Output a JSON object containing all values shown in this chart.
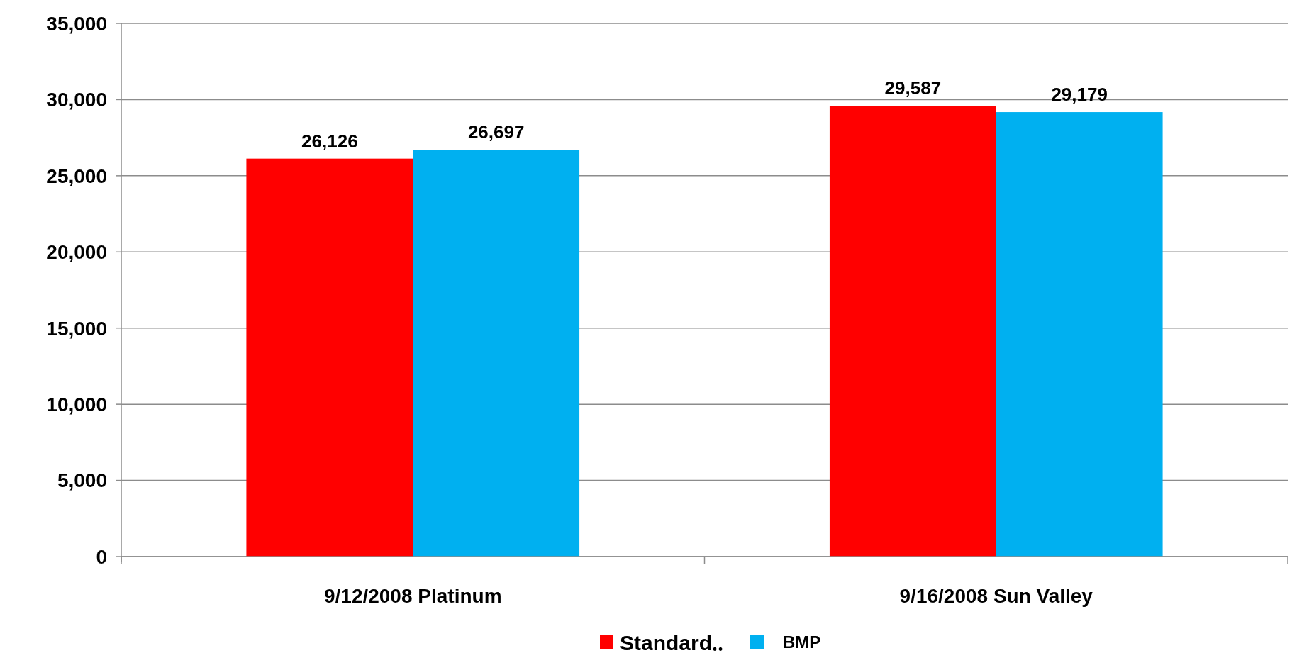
{
  "chart_data": {
    "type": "bar",
    "categories": [
      "9/12/2008 Platinum",
      "9/16/2008 Sun Valley"
    ],
    "series": [
      {
        "name": "Standard‥",
        "color": "#ff0000",
        "values": [
          26126,
          29587
        ]
      },
      {
        "name": "BMP",
        "color": "#00b0f0",
        "values": [
          26697,
          29179
        ]
      }
    ],
    "ylim": [
      0,
      35000
    ],
    "yticks": [
      {
        "value": 0,
        "label": "0"
      },
      {
        "value": 5000,
        "label": "5,000"
      },
      {
        "value": 10000,
        "label": "10,000"
      },
      {
        "value": 15000,
        "label": "15,000"
      },
      {
        "value": 20000,
        "label": "20,000"
      },
      {
        "value": 25000,
        "label": "25,000"
      },
      {
        "value": 30000,
        "label": "30,000"
      },
      {
        "value": 35000,
        "label": "35,000"
      }
    ],
    "value_labels": [
      [
        "26,126",
        "29,587"
      ],
      [
        "26,697",
        "29,179"
      ]
    ],
    "grid": "y",
    "legend": "bottom"
  }
}
